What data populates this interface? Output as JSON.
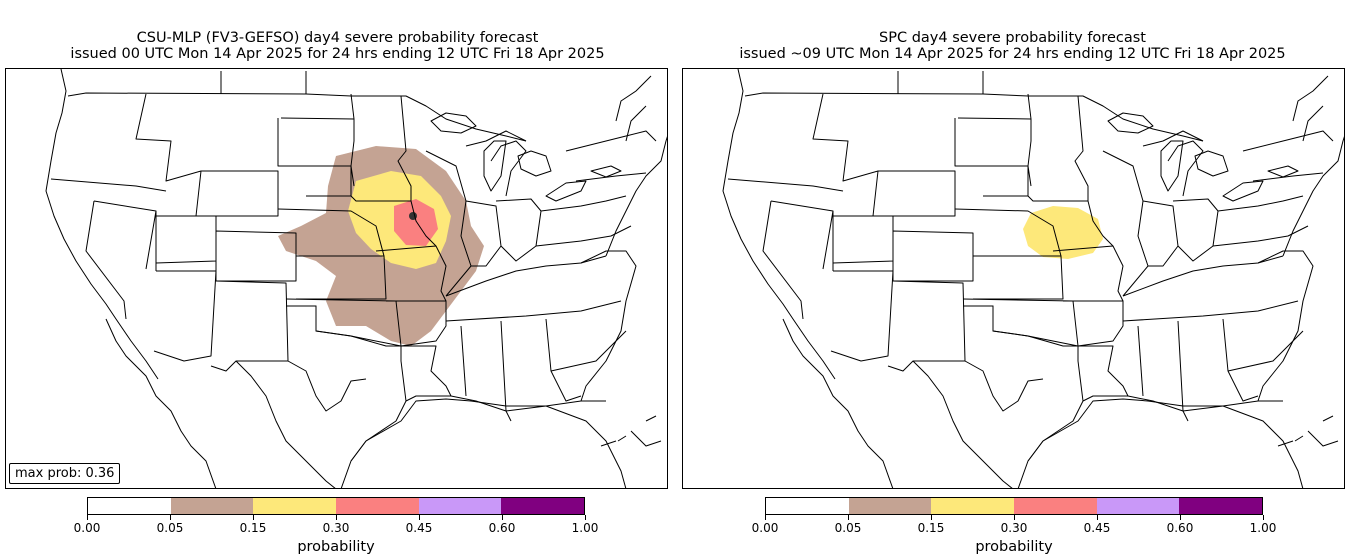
{
  "panels": [
    {
      "title_line1": "CSU-MLP (FV3-GEFSO) day4 severe probability forecast",
      "title_line2": "issued 00 UTC Mon 14 Apr 2025 for 24 hrs ending 12 UTC Fri 18 Apr 2025",
      "max_prob_label": "max prob: 0.36"
    },
    {
      "title_line1": "SPC day4 severe probability forecast",
      "title_line2": "issued ~09 UTC Mon 14 Apr 2025 for 24 hrs ending 12 UTC Fri 18 Apr 2025"
    }
  ],
  "colorbar": {
    "label": "probability",
    "ticks": [
      "0.00",
      "0.05",
      "0.15",
      "0.30",
      "0.45",
      "0.60",
      "1.00"
    ],
    "colors": [
      "#ffffff",
      "#c4a393",
      "#fde87a",
      "#fa8080",
      "#c998f8",
      "#800080"
    ]
  },
  "map": {
    "background": "#ffffff",
    "line_color": "#000000"
  }
}
